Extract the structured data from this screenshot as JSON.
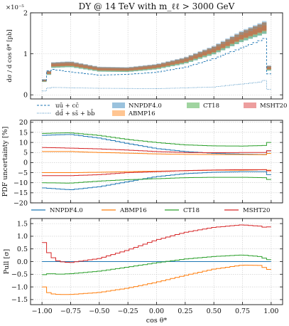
{
  "chart_data": {
    "type": "line",
    "title": "DY @ 14 TeV with m_ℓℓ > 3000 GeV",
    "xlabel": "cos θ*",
    "xlim": [
      -1.1,
      1.1
    ],
    "xticks": [
      "−1.00",
      "−0.75",
      "−0.50",
      "−0.25",
      "0.00",
      "0.25",
      "0.50",
      "0.75",
      "1.00"
    ],
    "colors": {
      "NNPDF4.0": "#1f77b4",
      "ABMP16": "#ff7f0e",
      "CT18": "#2ca02c",
      "MSHT20": "#d62728"
    },
    "panels": [
      {
        "id": "top",
        "ylabel": "dσ / d cos θ* [pb]",
        "y_multiplier": "×10⁻⁵",
        "ylim": [
          -0.1,
          2.0
        ],
        "yticks": [
          "0",
          "1",
          "2"
        ],
        "grid": true,
        "legend_placement": "below",
        "legend": [
          "uū + cc̄",
          "dd̄ + ss̄ + bb̄",
          "NNPDF4.0",
          "ABMP16",
          "CT18",
          "MSHT20"
        ],
        "bands": {
          "x": [
            -1.0,
            1.0
          ],
          "central_at_x": [
            -1.0,
            -0.9,
            -0.75,
            -0.5,
            -0.25,
            0.0,
            0.25,
            0.5,
            0.75,
            0.9,
            0.96,
            0.975,
            1.0
          ],
          "central_values": [
            0.25,
            0.72,
            0.74,
            0.62,
            0.61,
            0.68,
            0.83,
            1.08,
            1.42,
            1.58,
            1.65,
            0.75,
            0.24
          ]
        },
        "uu_cc": {
          "x": [
            -1.0,
            -0.96,
            -0.9,
            -0.75,
            -0.5,
            -0.25,
            0.0,
            0.25,
            0.5,
            0.75,
            0.9,
            0.96,
            0.975,
            1.0
          ],
          "y": [
            0.14,
            0.57,
            0.62,
            0.56,
            0.48,
            0.5,
            0.55,
            0.67,
            0.88,
            1.15,
            1.32,
            1.4,
            0.6,
            0.16
          ]
        },
        "dd_ss_bb": {
          "x": [
            -1.0,
            -0.96,
            -0.9,
            -0.5,
            0.0,
            0.5,
            0.9,
            0.96,
            0.975,
            1.0
          ],
          "y": [
            0.03,
            0.16,
            0.18,
            0.16,
            0.15,
            0.19,
            0.31,
            0.37,
            0.16,
            0.03
          ]
        }
      },
      {
        "id": "middle",
        "ylabel": "PDF uncertainty [%]",
        "ylim": [
          -20,
          21
        ],
        "yticks": [
          "−20",
          "−15",
          "−10",
          "−5",
          "0",
          "5",
          "10",
          "15",
          "20"
        ],
        "grid": true,
        "legend_placement": "below",
        "legend": [
          "NNPDF4.0",
          "ABMP16",
          "CT18",
          "MSHT20"
        ],
        "x": [
          -1.0,
          -0.75,
          -0.5,
          -0.25,
          0.0,
          0.25,
          0.5,
          0.75,
          0.95,
          1.0
        ],
        "series": [
          {
            "name": "NNPDF4.0",
            "up": [
              13.5,
              14.0,
              12.2,
              9.5,
              7.0,
              5.5,
              4.6,
              4.2,
              4.0,
              7.0
            ],
            "down": [
              -12.5,
              -13.5,
              -12.0,
              -9.5,
              -7.0,
              -5.5,
              -4.8,
              -4.5,
              -4.5,
              -7.0
            ]
          },
          {
            "name": "ABMP16",
            "up": [
              5.5,
              5.5,
              5.0,
              4.7,
              4.3,
              4.1,
              4.0,
              4.0,
              3.9,
              5.0
            ],
            "down": [
              -5.0,
              -5.0,
              -4.8,
              -4.5,
              -4.3,
              -4.0,
              -3.8,
              -3.8,
              -3.5,
              -4.0
            ]
          },
          {
            "name": "CT18",
            "up": [
              14.5,
              14.8,
              13.5,
              11.5,
              10.0,
              8.8,
              8.3,
              8.2,
              8.5,
              11.0
            ],
            "down": [
              -10.0,
              -10.2,
              -9.2,
              -8.5,
              -8.0,
              -7.5,
              -7.3,
              -7.3,
              -7.5,
              -9.0
            ]
          },
          {
            "name": "MSHT20",
            "up": [
              7.5,
              7.2,
              6.8,
              6.2,
              5.5,
              5.0,
              4.9,
              5.0,
              5.0,
              6.5
            ],
            "down": [
              -6.5,
              -6.5,
              -6.0,
              -5.0,
              -4.5,
              -4.0,
              -3.7,
              -3.5,
              -3.5,
              -4.5
            ]
          }
        ]
      },
      {
        "id": "bottom",
        "ylabel": "Pull [σ]",
        "ylim": [
          -1.7,
          1.7
        ],
        "yticks": [
          "−1.5",
          "−1.0",
          "−0.5",
          "0.0",
          "0.5",
          "1.0",
          "1.5"
        ],
        "grid": true,
        "x": [
          -1.0,
          -0.96,
          -0.9,
          -0.85,
          -0.75,
          -0.5,
          -0.25,
          0.0,
          0.25,
          0.5,
          0.75,
          0.9,
          0.95,
          0.975,
          1.0
        ],
        "series": [
          {
            "name": "NNPDF4.0",
            "values": [
              0,
              0,
              0,
              0,
              0,
              0,
              0,
              0,
              0,
              0,
              0,
              0,
              0,
              0,
              0
            ]
          },
          {
            "name": "ABMP16",
            "values": [
              -0.8,
              -1.2,
              -1.28,
              -1.3,
              -1.3,
              -1.22,
              -1.05,
              -0.82,
              -0.55,
              -0.3,
              -0.14,
              -0.15,
              -0.25,
              -0.3,
              -0.35
            ]
          },
          {
            "name": "CT18",
            "values": [
              -0.55,
              -0.48,
              -0.48,
              -0.5,
              -0.48,
              -0.38,
              -0.22,
              -0.05,
              0.1,
              0.2,
              0.26,
              0.2,
              0.12,
              0.06,
              0.15
            ]
          },
          {
            "name": "MSHT20",
            "values": [
              1.05,
              0.45,
              0.15,
              0.0,
              -0.04,
              0.12,
              0.45,
              0.85,
              1.15,
              1.35,
              1.45,
              1.4,
              1.35,
              1.35,
              1.45
            ]
          }
        ]
      }
    ]
  }
}
